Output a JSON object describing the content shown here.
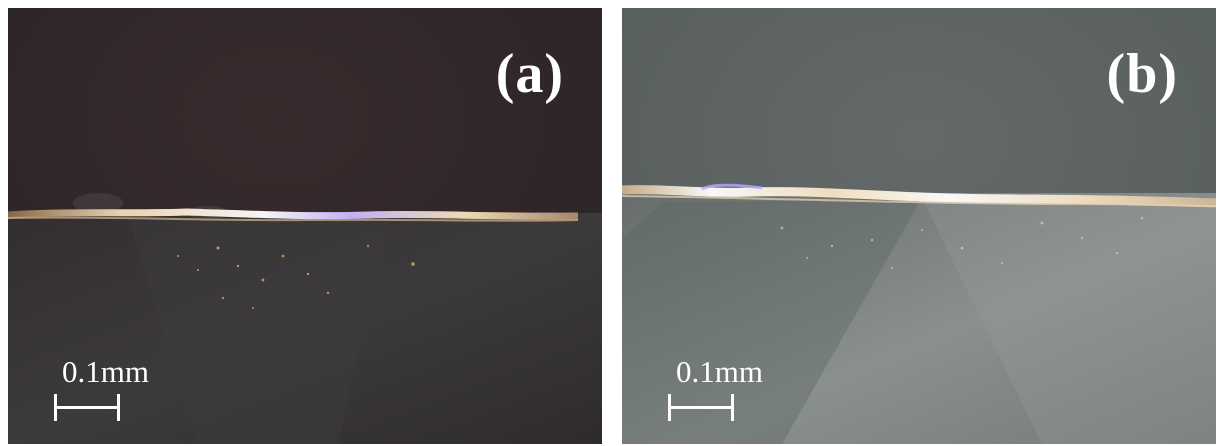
{
  "panels": [
    {
      "label": "(a)",
      "scale_text": "0.1mm",
      "background": "dark micrograph of a machined edge",
      "base_color": "#2f2828"
    },
    {
      "label": "(b)",
      "scale_text": "0.1mm",
      "background": "grey micrograph of a machined edge",
      "base_color": "#5c6464"
    }
  ],
  "colors": {
    "text": "#ffffff",
    "edge_highlight": "#f4e6c8"
  }
}
